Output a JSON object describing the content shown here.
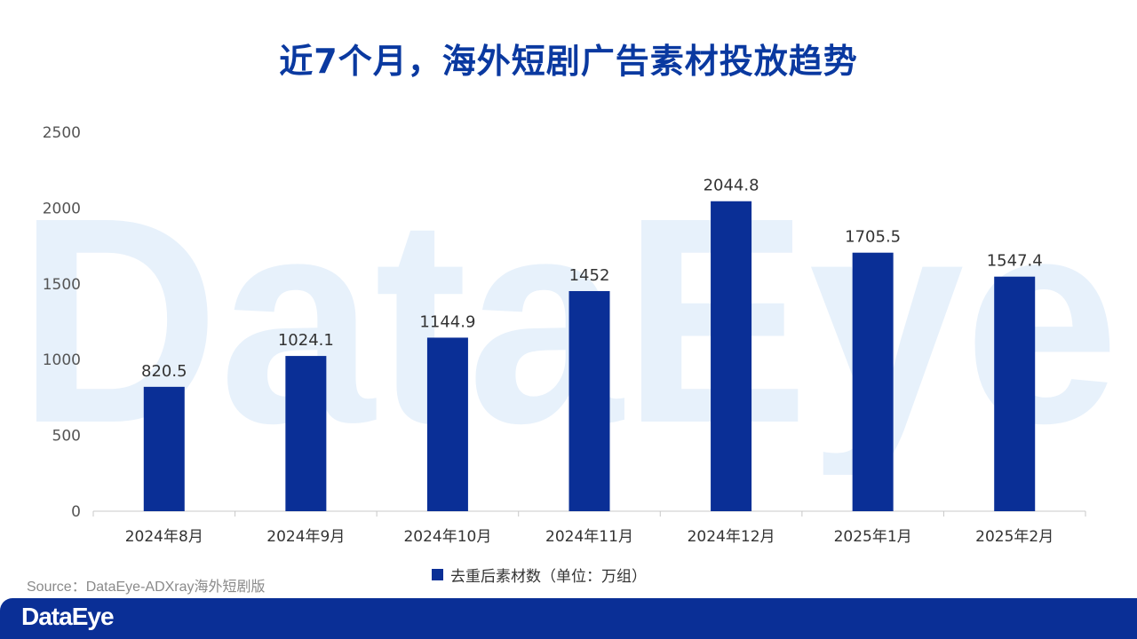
{
  "title": "近7个月，海外短剧广告素材投放趋势",
  "watermark_text": "DataEye",
  "source": "Source：DataEye-ADXray海外短剧版",
  "footer": {
    "logo": "DataEye"
  },
  "colors": {
    "bar": "#0a2f96",
    "title": "#0a39a0",
    "watermark": "#e7f1fb"
  },
  "chart_data": {
    "type": "bar",
    "categories": [
      "2024年8月",
      "2024年9月",
      "2024年10月",
      "2024年11月",
      "2024年12月",
      "2025年1月",
      "2025年2月"
    ],
    "series": [
      {
        "name": "去重后素材数（单位：万组）",
        "values": [
          820.5,
          1024.1,
          1144.9,
          1452,
          2044.8,
          1705.5,
          1547.4
        ],
        "labels": [
          "820.5",
          "1024.1",
          "1144.9",
          "1452",
          "2044.8",
          "1705.5",
          "1547.4"
        ]
      }
    ],
    "ylim": [
      0,
      2500
    ],
    "yticks": [
      "0",
      "500",
      "1000",
      "1500",
      "2000",
      "2500"
    ],
    "grid": false,
    "legend_position": "bottom"
  }
}
